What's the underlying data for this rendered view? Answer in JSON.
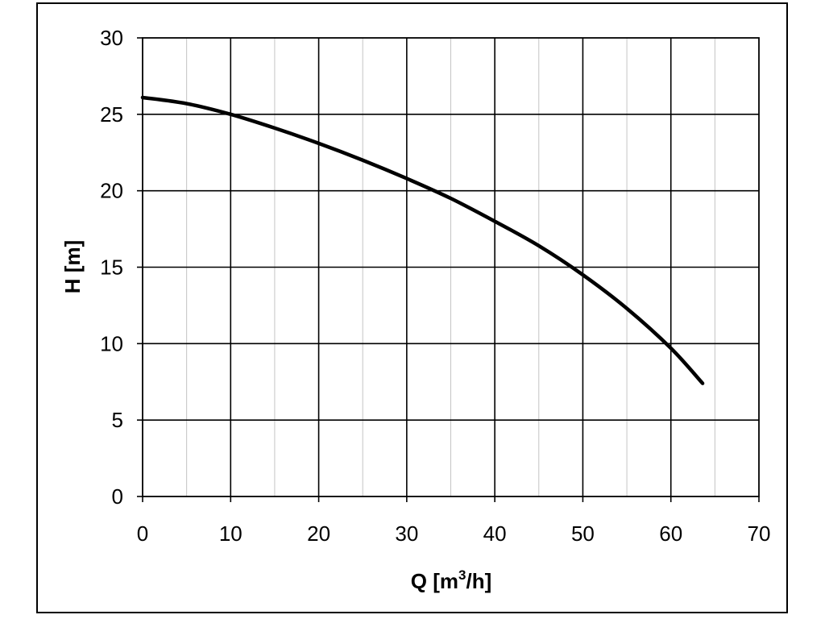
{
  "chart_data": {
    "type": "line",
    "title": "",
    "xlabel": {
      "main": "Q [m",
      "superscript": "3",
      "suffix": "/h]"
    },
    "ylabel": "H [m]",
    "xlim": [
      0,
      70
    ],
    "ylim": [
      0,
      30
    ],
    "x_ticks": [
      0,
      10,
      20,
      30,
      40,
      50,
      60,
      70
    ],
    "y_ticks": [
      0,
      5,
      10,
      15,
      20,
      25,
      30
    ],
    "x_minor_step": 5,
    "grid": true,
    "legend": "none",
    "series": [
      {
        "color": "#000000",
        "x": [
          0,
          5,
          10,
          15,
          20,
          25,
          30,
          35,
          40,
          45,
          50,
          55,
          60,
          63.6
        ],
        "y": [
          26.1,
          25.7,
          25.0,
          24.1,
          23.1,
          22.0,
          20.8,
          19.5,
          18.0,
          16.4,
          14.5,
          12.3,
          9.7,
          7.4
        ]
      }
    ]
  }
}
